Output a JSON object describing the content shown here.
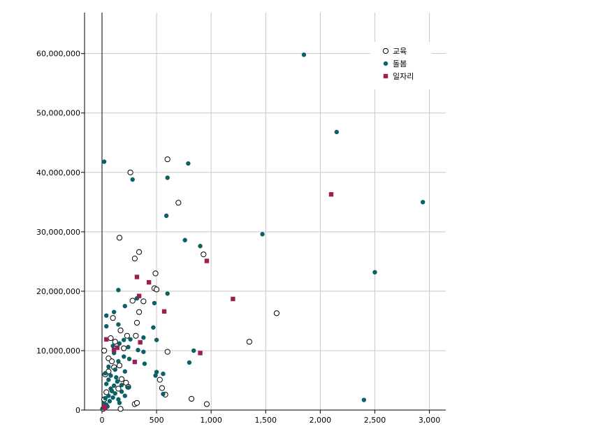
{
  "chart_data": {
    "type": "scatter",
    "x_ticks": [
      "0",
      "500",
      "1,000",
      "1,500",
      "2,000",
      "2,500",
      "3,000"
    ],
    "x_tick_values": [
      0,
      500,
      1000,
      1500,
      2000,
      2500,
      3000
    ],
    "y_ticks": [
      "0",
      "10,000,000",
      "20,000,000",
      "30,000,000",
      "40,000,000",
      "50,000,000",
      "60,000,000"
    ],
    "y_tick_values": [
      0,
      10000000,
      20000000,
      30000000,
      40000000,
      50000000,
      60000000
    ],
    "xlim": [
      -160,
      3150
    ],
    "ylim": [
      0,
      66900000
    ],
    "grid": true,
    "legend_position": "top-right",
    "series": [
      {
        "name": "교육",
        "marker": "open-circle",
        "color": "#000000",
        "points": [
          [
            600,
            42200000
          ],
          [
            260,
            40000000
          ],
          [
            700,
            34900000
          ],
          [
            160,
            29000000
          ],
          [
            340,
            26600000
          ],
          [
            300,
            25500000
          ],
          [
            930,
            26200000
          ],
          [
            490,
            23000000
          ],
          [
            480,
            20500000
          ],
          [
            500,
            20300000
          ],
          [
            280,
            18400000
          ],
          [
            380,
            18300000
          ],
          [
            340,
            16500000
          ],
          [
            100,
            15500000
          ],
          [
            320,
            14700000
          ],
          [
            170,
            13400000
          ],
          [
            1600,
            16300000
          ],
          [
            1350,
            11500000
          ],
          [
            600,
            9800000
          ],
          [
            80,
            12100000
          ],
          [
            120,
            11500000
          ],
          [
            230,
            12500000
          ],
          [
            310,
            12500000
          ],
          [
            200,
            10400000
          ],
          [
            20,
            10000000
          ],
          [
            60,
            8700000
          ],
          [
            90,
            8200000
          ],
          [
            160,
            7500000
          ],
          [
            110,
            7200000
          ],
          [
            60,
            6500000
          ],
          [
            30,
            6000000
          ],
          [
            180,
            5200000
          ],
          [
            220,
            4600000
          ],
          [
            240,
            3900000
          ],
          [
            150,
            3600000
          ],
          [
            530,
            5100000
          ],
          [
            550,
            3700000
          ],
          [
            580,
            2600000
          ],
          [
            820,
            1900000
          ],
          [
            960,
            1000000
          ],
          [
            300,
            1000000
          ],
          [
            320,
            1200000
          ],
          [
            170,
            200000
          ],
          [
            20,
            1800000
          ],
          [
            40,
            3000000
          ],
          [
            10,
            200000
          ]
        ]
      },
      {
        "name": "돌봄",
        "marker": "filled-circle",
        "color": "#0a6166",
        "points": [
          [
            1850,
            59800000
          ],
          [
            2150,
            46800000
          ],
          [
            20,
            41800000
          ],
          [
            790,
            41500000
          ],
          [
            600,
            39100000
          ],
          [
            280,
            38800000
          ],
          [
            2940,
            35000000
          ],
          [
            590,
            32700000
          ],
          [
            1470,
            29600000
          ],
          [
            760,
            28600000
          ],
          [
            900,
            27600000
          ],
          [
            2500,
            23200000
          ],
          [
            150,
            20200000
          ],
          [
            600,
            19600000
          ],
          [
            320,
            18800000
          ],
          [
            480,
            18000000
          ],
          [
            210,
            17500000
          ],
          [
            40,
            15900000
          ],
          [
            110,
            16500000
          ],
          [
            470,
            13900000
          ],
          [
            40,
            14100000
          ],
          [
            150,
            14400000
          ],
          [
            200,
            11800000
          ],
          [
            260,
            11900000
          ],
          [
            380,
            12200000
          ],
          [
            500,
            11800000
          ],
          [
            160,
            11200000
          ],
          [
            100,
            10800000
          ],
          [
            240,
            10600000
          ],
          [
            330,
            10100000
          ],
          [
            380,
            9800000
          ],
          [
            840,
            10000000
          ],
          [
            800,
            8000000
          ],
          [
            110,
            9600000
          ],
          [
            200,
            9000000
          ],
          [
            150,
            8200000
          ],
          [
            250,
            8600000
          ],
          [
            390,
            7800000
          ],
          [
            60,
            7300000
          ],
          [
            120,
            6800000
          ],
          [
            210,
            6500000
          ],
          [
            500,
            6400000
          ],
          [
            560,
            6100000
          ],
          [
            490,
            5800000
          ],
          [
            30,
            6200000
          ],
          [
            80,
            5800000
          ],
          [
            140,
            4800000
          ],
          [
            180,
            4200000
          ],
          [
            240,
            3800000
          ],
          [
            40,
            4400000
          ],
          [
            90,
            3200000
          ],
          [
            120,
            2800000
          ],
          [
            60,
            2400000
          ],
          [
            30,
            2000000
          ],
          [
            150,
            1800000
          ],
          [
            210,
            2400000
          ],
          [
            560,
            2700000
          ],
          [
            20,
            1100000
          ],
          [
            50,
            600000
          ],
          [
            10,
            300000
          ],
          [
            2400,
            1700000
          ],
          [
            100,
            2100000
          ],
          [
            70,
            1500000
          ],
          [
            160,
            1200000
          ],
          [
            40,
            900000
          ],
          [
            80,
            3600000
          ],
          [
            110,
            4100000
          ],
          [
            60,
            5100000
          ],
          [
            130,
            5500000
          ],
          [
            180,
            3100000
          ]
        ]
      },
      {
        "name": "일자리",
        "marker": "filled-square",
        "color": "#9b1f57",
        "points": [
          [
            2100,
            36300000
          ],
          [
            960,
            25100000
          ],
          [
            320,
            22400000
          ],
          [
            430,
            21500000
          ],
          [
            340,
            19200000
          ],
          [
            1200,
            18700000
          ],
          [
            570,
            16600000
          ],
          [
            40,
            11900000
          ],
          [
            350,
            11400000
          ],
          [
            110,
            10100000
          ],
          [
            140,
            10500000
          ],
          [
            900,
            9600000
          ],
          [
            300,
            8100000
          ],
          [
            20,
            600000
          ],
          [
            30,
            300000
          ]
        ]
      }
    ]
  }
}
